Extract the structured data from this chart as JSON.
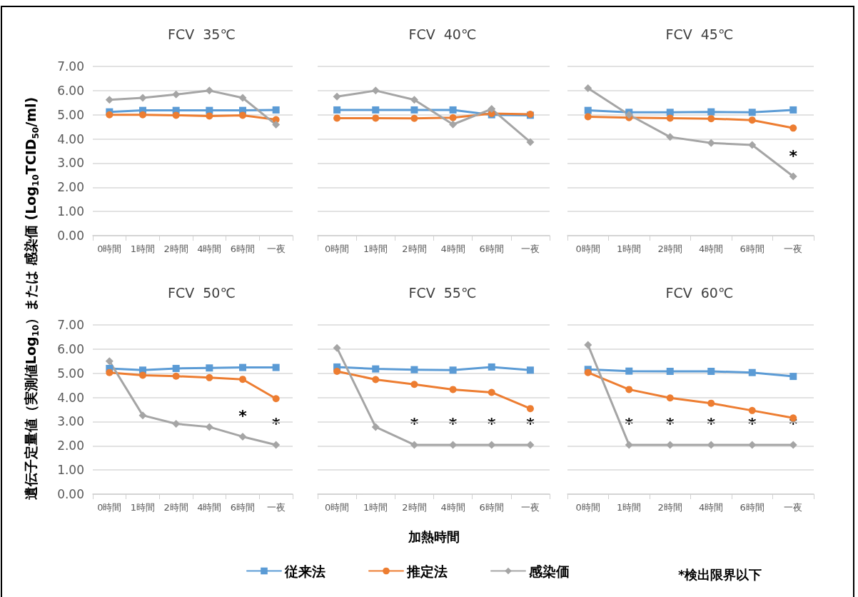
{
  "chart_data": [
    {
      "type": "line",
      "title": "FCV  35℃",
      "ylabel": "遺伝子定量値（実測値Log$_{10}$）または 感染価 (Log$_{10}$TCID$_{50}$/ml)",
      "categories": [
        "0時間",
        "1時間",
        "2時間",
        "4時間",
        "6時間",
        "一夜"
      ],
      "ylim": [
        0,
        7
      ],
      "yticks": [
        {
          "value": 0,
          "label": "0.00"
        },
        {
          "value": 1,
          "label": "1.00"
        },
        {
          "value": 2,
          "label": "2.00"
        },
        {
          "value": 3,
          "label": "3.00"
        },
        {
          "value": 4,
          "label": "4.00"
        },
        {
          "value": 5,
          "label": "5.00"
        },
        {
          "value": 6,
          "label": "6.00"
        },
        {
          "value": 7,
          "label": "7.00"
        }
      ],
      "grid": "y",
      "series": [
        {
          "color": "#5b9bd5",
          "marker": "square",
          "values": [
            5.12,
            5.18,
            5.18,
            5.18,
            5.18,
            5.2
          ]
        },
        {
          "color": "#ed7d31",
          "marker": "circle",
          "values": [
            5.0,
            5.0,
            4.98,
            4.95,
            4.98,
            4.8
          ]
        },
        {
          "color": "#a5a5a5",
          "marker": "diamond",
          "values": [
            5.62,
            5.7,
            5.84,
            6.0,
            5.7,
            4.59
          ]
        }
      ]
    },
    {
      "type": "line",
      "title": "FCV  40℃",
      "categories": [
        "0時間",
        "1時間",
        "2時間",
        "4時間",
        "6時間",
        "一夜"
      ],
      "ylim": [
        0,
        7
      ],
      "yticks": [
        {
          "value": 0,
          "label": "0.00"
        },
        {
          "value": 1,
          "label": "1.00"
        },
        {
          "value": 2,
          "label": "2.00"
        },
        {
          "value": 3,
          "label": "3.00"
        },
        {
          "value": 4,
          "label": "4.00"
        },
        {
          "value": 5,
          "label": "5.00"
        },
        {
          "value": 6,
          "label": "6.00"
        },
        {
          "value": 7,
          "label": "7.00"
        }
      ],
      "tick_labels": "x",
      "grid": "y",
      "series": [
        {
          "color": "#5b9bd5",
          "marker": "square",
          "values": [
            5.2,
            5.2,
            5.2,
            5.2,
            5.0,
            4.98
          ]
        },
        {
          "color": "#ed7d31",
          "marker": "circle",
          "values": [
            4.86,
            4.86,
            4.85,
            4.88,
            5.05,
            5.02
          ]
        },
        {
          "color": "#a5a5a5",
          "marker": "diamond",
          "values": [
            5.75,
            6.0,
            5.62,
            4.6,
            5.24,
            3.87
          ]
        }
      ]
    },
    {
      "type": "line",
      "title": "FCV  45℃",
      "categories": [
        "0時間",
        "1時間",
        "2時間",
        "4時間",
        "6時間",
        "一夜"
      ],
      "ylim": [
        0,
        7
      ],
      "yticks": [
        {
          "value": 0,
          "label": "0.00"
        },
        {
          "value": 1,
          "label": "1.00"
        },
        {
          "value": 2,
          "label": "2.00"
        },
        {
          "value": 3,
          "label": "3.00"
        },
        {
          "value": 4,
          "label": "4.00"
        },
        {
          "value": 5,
          "label": "5.00"
        },
        {
          "value": 6,
          "label": "6.00"
        },
        {
          "value": 7,
          "label": "7.00"
        }
      ],
      "tick_labels": "x",
      "grid": "y",
      "annotations": [
        {
          "text": "*",
          "x": "一夜",
          "y": 2.45
        }
      ],
      "series": [
        {
          "color": "#5b9bd5",
          "marker": "square",
          "values": [
            5.18,
            5.1,
            5.1,
            5.12,
            5.1,
            5.2
          ]
        },
        {
          "color": "#ed7d31",
          "marker": "circle",
          "values": [
            4.92,
            4.88,
            4.86,
            4.84,
            4.78,
            4.45
          ]
        },
        {
          "color": "#a5a5a5",
          "marker": "diamond",
          "values": [
            6.1,
            5.0,
            4.08,
            3.83,
            3.75,
            2.45
          ]
        }
      ]
    },
    {
      "type": "line",
      "title": "FCV  50℃",
      "categories": [
        "0時間",
        "1時間",
        "2時間",
        "4時間",
        "6時間",
        "一夜"
      ],
      "ylim": [
        0,
        7
      ],
      "yticks": [
        {
          "value": 0,
          "label": "0.00"
        },
        {
          "value": 1,
          "label": "1.00"
        },
        {
          "value": 2,
          "label": "2.00"
        },
        {
          "value": 3,
          "label": "3.00"
        },
        {
          "value": 4,
          "label": "4.00"
        },
        {
          "value": 5,
          "label": "5.00"
        },
        {
          "value": 6,
          "label": "6.00"
        },
        {
          "value": 7,
          "label": "7.00"
        }
      ],
      "grid": "y",
      "annotations": [
        {
          "text": "*",
          "x": "6時間",
          "y": 2.38
        },
        {
          "text": "*",
          "x": "一夜",
          "y": 2.04
        }
      ],
      "series": [
        {
          "color": "#5b9bd5",
          "marker": "square",
          "values": [
            5.2,
            5.13,
            5.2,
            5.22,
            5.24,
            5.24
          ]
        },
        {
          "color": "#ed7d31",
          "marker": "circle",
          "values": [
            5.03,
            4.92,
            4.88,
            4.82,
            4.75,
            3.95
          ]
        },
        {
          "color": "#a5a5a5",
          "marker": "diamond",
          "values": [
            5.5,
            3.26,
            2.91,
            2.78,
            2.38,
            2.04
          ]
        }
      ]
    },
    {
      "type": "line",
      "title": "FCV  55℃",
      "xlabel": "加熱時間",
      "legend": "bottom",
      "categories": [
        "0時間",
        "1時間",
        "2時間",
        "4時間",
        "6時間",
        "一夜"
      ],
      "ylim": [
        0,
        7
      ],
      "yticks": [
        {
          "value": 0,
          "label": "0.00"
        },
        {
          "value": 1,
          "label": "1.00"
        },
        {
          "value": 2,
          "label": "2.00"
        },
        {
          "value": 3,
          "label": "3.00"
        },
        {
          "value": 4,
          "label": "4.00"
        },
        {
          "value": 5,
          "label": "5.00"
        },
        {
          "value": 6,
          "label": "6.00"
        },
        {
          "value": 7,
          "label": "7.00"
        }
      ],
      "tick_labels": "x",
      "grid": "y",
      "annotations": [
        {
          "text": "*",
          "x": "2時間",
          "y": 2.04
        },
        {
          "text": "*",
          "x": "4時間",
          "y": 2.04
        },
        {
          "text": "*",
          "x": "6時間",
          "y": 2.04
        },
        {
          "text": "*",
          "x": "一夜",
          "y": 2.04
        }
      ],
      "series": [
        {
          "name": "従来法",
          "color": "#5b9bd5",
          "marker": "square",
          "values": [
            5.26,
            5.18,
            5.15,
            5.13,
            5.26,
            5.13
          ]
        },
        {
          "name": "推定法",
          "color": "#ed7d31",
          "marker": "circle",
          "values": [
            5.08,
            4.74,
            4.54,
            4.33,
            4.21,
            3.54
          ]
        },
        {
          "name": "感染価",
          "color": "#a5a5a5",
          "marker": "diamond",
          "values": [
            6.05,
            2.78,
            2.04,
            2.04,
            2.04,
            2.04
          ]
        }
      ]
    },
    {
      "type": "line",
      "title": "FCV  60℃",
      "categories": [
        "0時間",
        "1時間",
        "2時間",
        "4時間",
        "6時間",
        "一夜"
      ],
      "ylim": [
        0,
        7
      ],
      "yticks": [
        {
          "value": 0,
          "label": "0.00"
        },
        {
          "value": 1,
          "label": "1.00"
        },
        {
          "value": 2,
          "label": "2.00"
        },
        {
          "value": 3,
          "label": "3.00"
        },
        {
          "value": 4,
          "label": "4.00"
        },
        {
          "value": 5,
          "label": "5.00"
        },
        {
          "value": 6,
          "label": "6.00"
        },
        {
          "value": 7,
          "label": "7.00"
        }
      ],
      "tick_labels": "x",
      "grid": "y",
      "annotations": [
        "*検出限界以下",
        {
          "text": "*",
          "x": "1時間",
          "y": 2.04
        },
        {
          "text": "*",
          "x": "2時間",
          "y": 2.04
        },
        {
          "text": "*",
          "x": "4時間",
          "y": 2.04
        },
        {
          "text": "*",
          "x": "6時間",
          "y": 2.04
        },
        {
          "text": "*",
          "x": "一夜",
          "y": 2.04
        }
      ],
      "series": [
        {
          "color": "#5b9bd5",
          "marker": "square",
          "values": [
            5.16,
            5.09,
            5.08,
            5.08,
            5.03,
            4.87
          ]
        },
        {
          "color": "#ed7d31",
          "marker": "circle",
          "values": [
            5.03,
            4.33,
            3.98,
            3.76,
            3.46,
            3.15
          ]
        },
        {
          "color": "#a5a5a5",
          "marker": "diamond",
          "values": [
            6.17,
            2.04,
            2.04,
            2.04,
            2.04,
            2.04
          ]
        }
      ]
    }
  ]
}
